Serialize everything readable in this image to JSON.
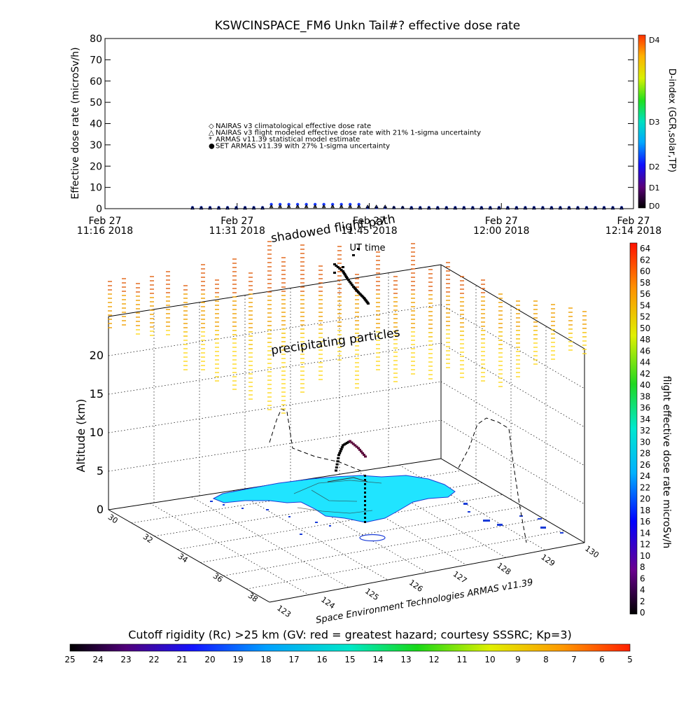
{
  "chart_data": [
    {
      "type": "scatter",
      "title": "KSWCINSPACE_FM6 Unkn Tail#? effective dose rate",
      "ylabel": "Effective dose rate (microSv/h)",
      "xlabel": "UT time",
      "ylim": [
        0,
        80
      ],
      "yticks": [
        "0",
        "10",
        "20",
        "30",
        "40",
        "50",
        "60",
        "70",
        "80"
      ],
      "xticks": [
        {
          "date": "Feb 27",
          "time": "11:16 2018"
        },
        {
          "date": "Feb 27",
          "time": "11:31 2018"
        },
        {
          "date": "Feb 27",
          "time": "11:45 2018"
        },
        {
          "date": "Feb 27",
          "time": "12:00 2018"
        },
        {
          "date": "Feb 27",
          "time": "12:14 2018"
        }
      ],
      "legend": [
        "NAIRAS v3 climatological effective dose rate",
        "NAIRAS v3 flight modeled effective dose rate with 21% 1-sigma uncertainty",
        "ARMAS v11.39 statistical model estimate",
        "SET ARMAS v11.39 with 27% 1-sigma uncertainty"
      ],
      "legend_placement": "center-left",
      "series": [
        {
          "color": "#1a3cff",
          "marker": "circle-filled",
          "values": [
            0.5,
            0.5,
            0.5,
            0.5,
            0.5,
            0.5,
            0.5,
            0.5,
            0.5,
            2,
            2,
            2,
            2,
            2,
            2,
            2,
            2,
            2,
            2,
            2,
            0.5,
            0.5,
            0.5,
            0.5,
            0.5,
            0.5,
            0.5,
            0.5,
            0.5,
            0.5,
            0.5,
            0.5,
            0.5,
            0.5,
            0.5,
            0.5,
            0.5,
            0.5,
            0.5,
            0.5,
            0.5,
            0.5,
            0.5,
            0.5,
            0.5,
            0.5,
            0.5,
            0.5,
            0.5,
            0.5
          ]
        },
        {
          "color": "#40d040",
          "marker": "asterisk",
          "values": [
            0,
            0,
            0,
            0,
            0,
            0,
            0,
            0,
            0,
            0.5,
            0.5,
            0.5,
            0.5,
            0.5,
            0.5,
            0.5,
            0.5,
            0.5,
            0.5,
            0.5,
            0,
            0,
            0,
            0,
            0,
            0,
            0,
            0,
            0,
            0,
            0,
            0,
            0,
            0,
            0,
            0,
            0,
            0,
            0,
            0,
            0,
            0,
            0,
            0,
            0,
            0,
            0,
            0,
            0,
            0
          ]
        },
        {
          "color": "#000000",
          "marker": "triangle-open",
          "values": [
            0.3,
            0.3,
            0.3,
            0.3,
            0.3,
            0.3,
            0.3,
            0.3,
            0.3,
            1,
            1,
            1,
            1,
            1,
            1,
            1,
            1,
            1,
            1,
            1,
            1,
            1,
            1,
            0.5,
            0.5,
            0.3,
            0.3,
            0.3,
            0.3,
            0.3,
            0.3,
            0.3,
            0.3,
            0.3,
            0.3,
            0.3,
            0.3,
            0.3,
            0.3,
            0.3,
            0.3,
            0.3,
            0.3,
            0.3,
            0.3,
            0.3,
            0.3,
            0.3,
            0.3,
            0.3
          ]
        }
      ],
      "colorbar": {
        "label": "D-index (GCR,solar,TP)",
        "ticks": [
          "D0",
          "D1",
          "D2",
          "D3",
          "D4"
        ]
      }
    },
    {
      "type": "scatter3d",
      "zlabel": "Altitude (km)",
      "zticks": [
        "0",
        "5",
        "10",
        "15",
        "20"
      ],
      "latticks": [
        "30",
        "32",
        "34",
        "36",
        "38"
      ],
      "lonticks": [
        "123",
        "124",
        "125",
        "126",
        "127",
        "128",
        "129",
        "130"
      ],
      "annotations": [
        "shadowed flight path",
        "precipitating particles"
      ],
      "credit": "Space Environment Technologies ARMAS v11.39",
      "colorbar_right": {
        "label": "flight effective dose rate microSv/h",
        "ticks": [
          "0",
          "2",
          "4",
          "6",
          "8",
          "10",
          "12",
          "14",
          "16",
          "18",
          "20",
          "22",
          "24",
          "26",
          "28",
          "30",
          "32",
          "34",
          "36",
          "38",
          "40",
          "42",
          "44",
          "46",
          "48",
          "50",
          "52",
          "54",
          "56",
          "58",
          "60",
          "62",
          "64"
        ]
      },
      "colorbar_bottom": {
        "label": "Cutoff rigidity (Rc) >25 km (GV: red = greatest hazard; courtesy SSSRC; Kp=3)",
        "ticks": [
          "25",
          "24",
          "23",
          "22",
          "21",
          "20",
          "19",
          "18",
          "17",
          "16",
          "15",
          "14",
          "13",
          "12",
          "11",
          "10",
          "9",
          "8",
          "7",
          "6",
          "5"
        ]
      }
    }
  ]
}
